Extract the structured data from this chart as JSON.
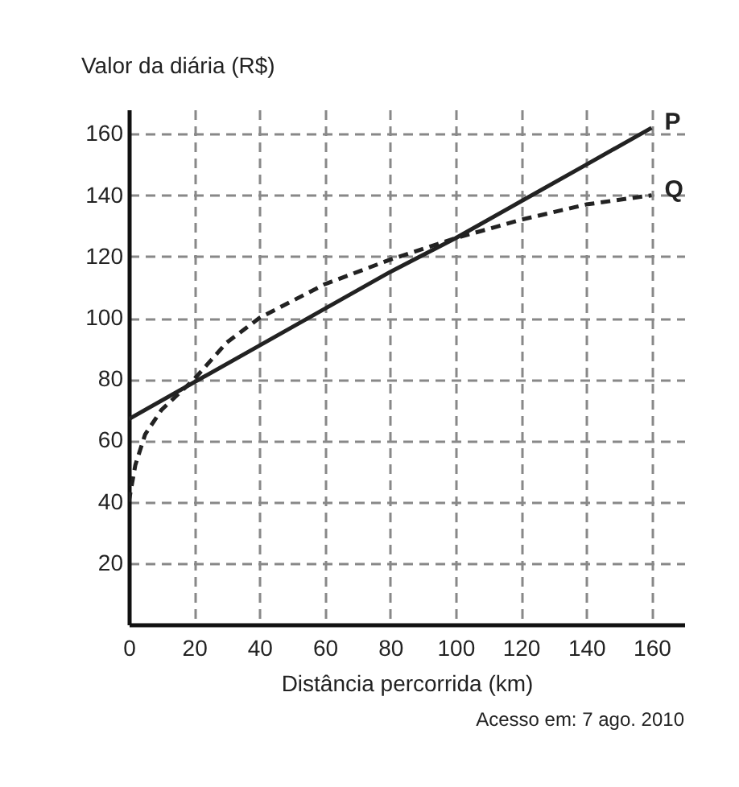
{
  "chart_data": {
    "type": "line",
    "xlabel": "Distância percorrida (km)",
    "ylabel": "Valor da diária (R$)",
    "annotations": [
      "Acesso em: 7 ago. 2010"
    ],
    "xlim": [
      0,
      170
    ],
    "xticks": [
      0,
      20,
      40,
      60,
      80,
      100,
      120,
      140,
      160
    ],
    "ylim": [
      0,
      168
    ],
    "yticks": [
      20,
      40,
      60,
      80,
      100,
      120,
      140,
      160
    ],
    "grid": true,
    "marker": "none",
    "series": [
      {
        "name": "P",
        "color": "#222222",
        "line_style": "solid",
        "x": [
          0,
          20,
          40,
          60,
          80,
          100,
          120,
          140,
          160
        ],
        "values": [
          67,
          79,
          91,
          103,
          115,
          126,
          138,
          150,
          162
        ]
      },
      {
        "name": "Q",
        "color": "#222222",
        "line_style": "dashed",
        "x": [
          0,
          2,
          5,
          10,
          20,
          30,
          40,
          60,
          80,
          100,
          120,
          140,
          160
        ],
        "values": [
          40,
          52,
          62,
          70,
          80,
          92,
          100,
          111,
          119,
          126,
          132,
          137,
          140
        ]
      }
    ]
  }
}
